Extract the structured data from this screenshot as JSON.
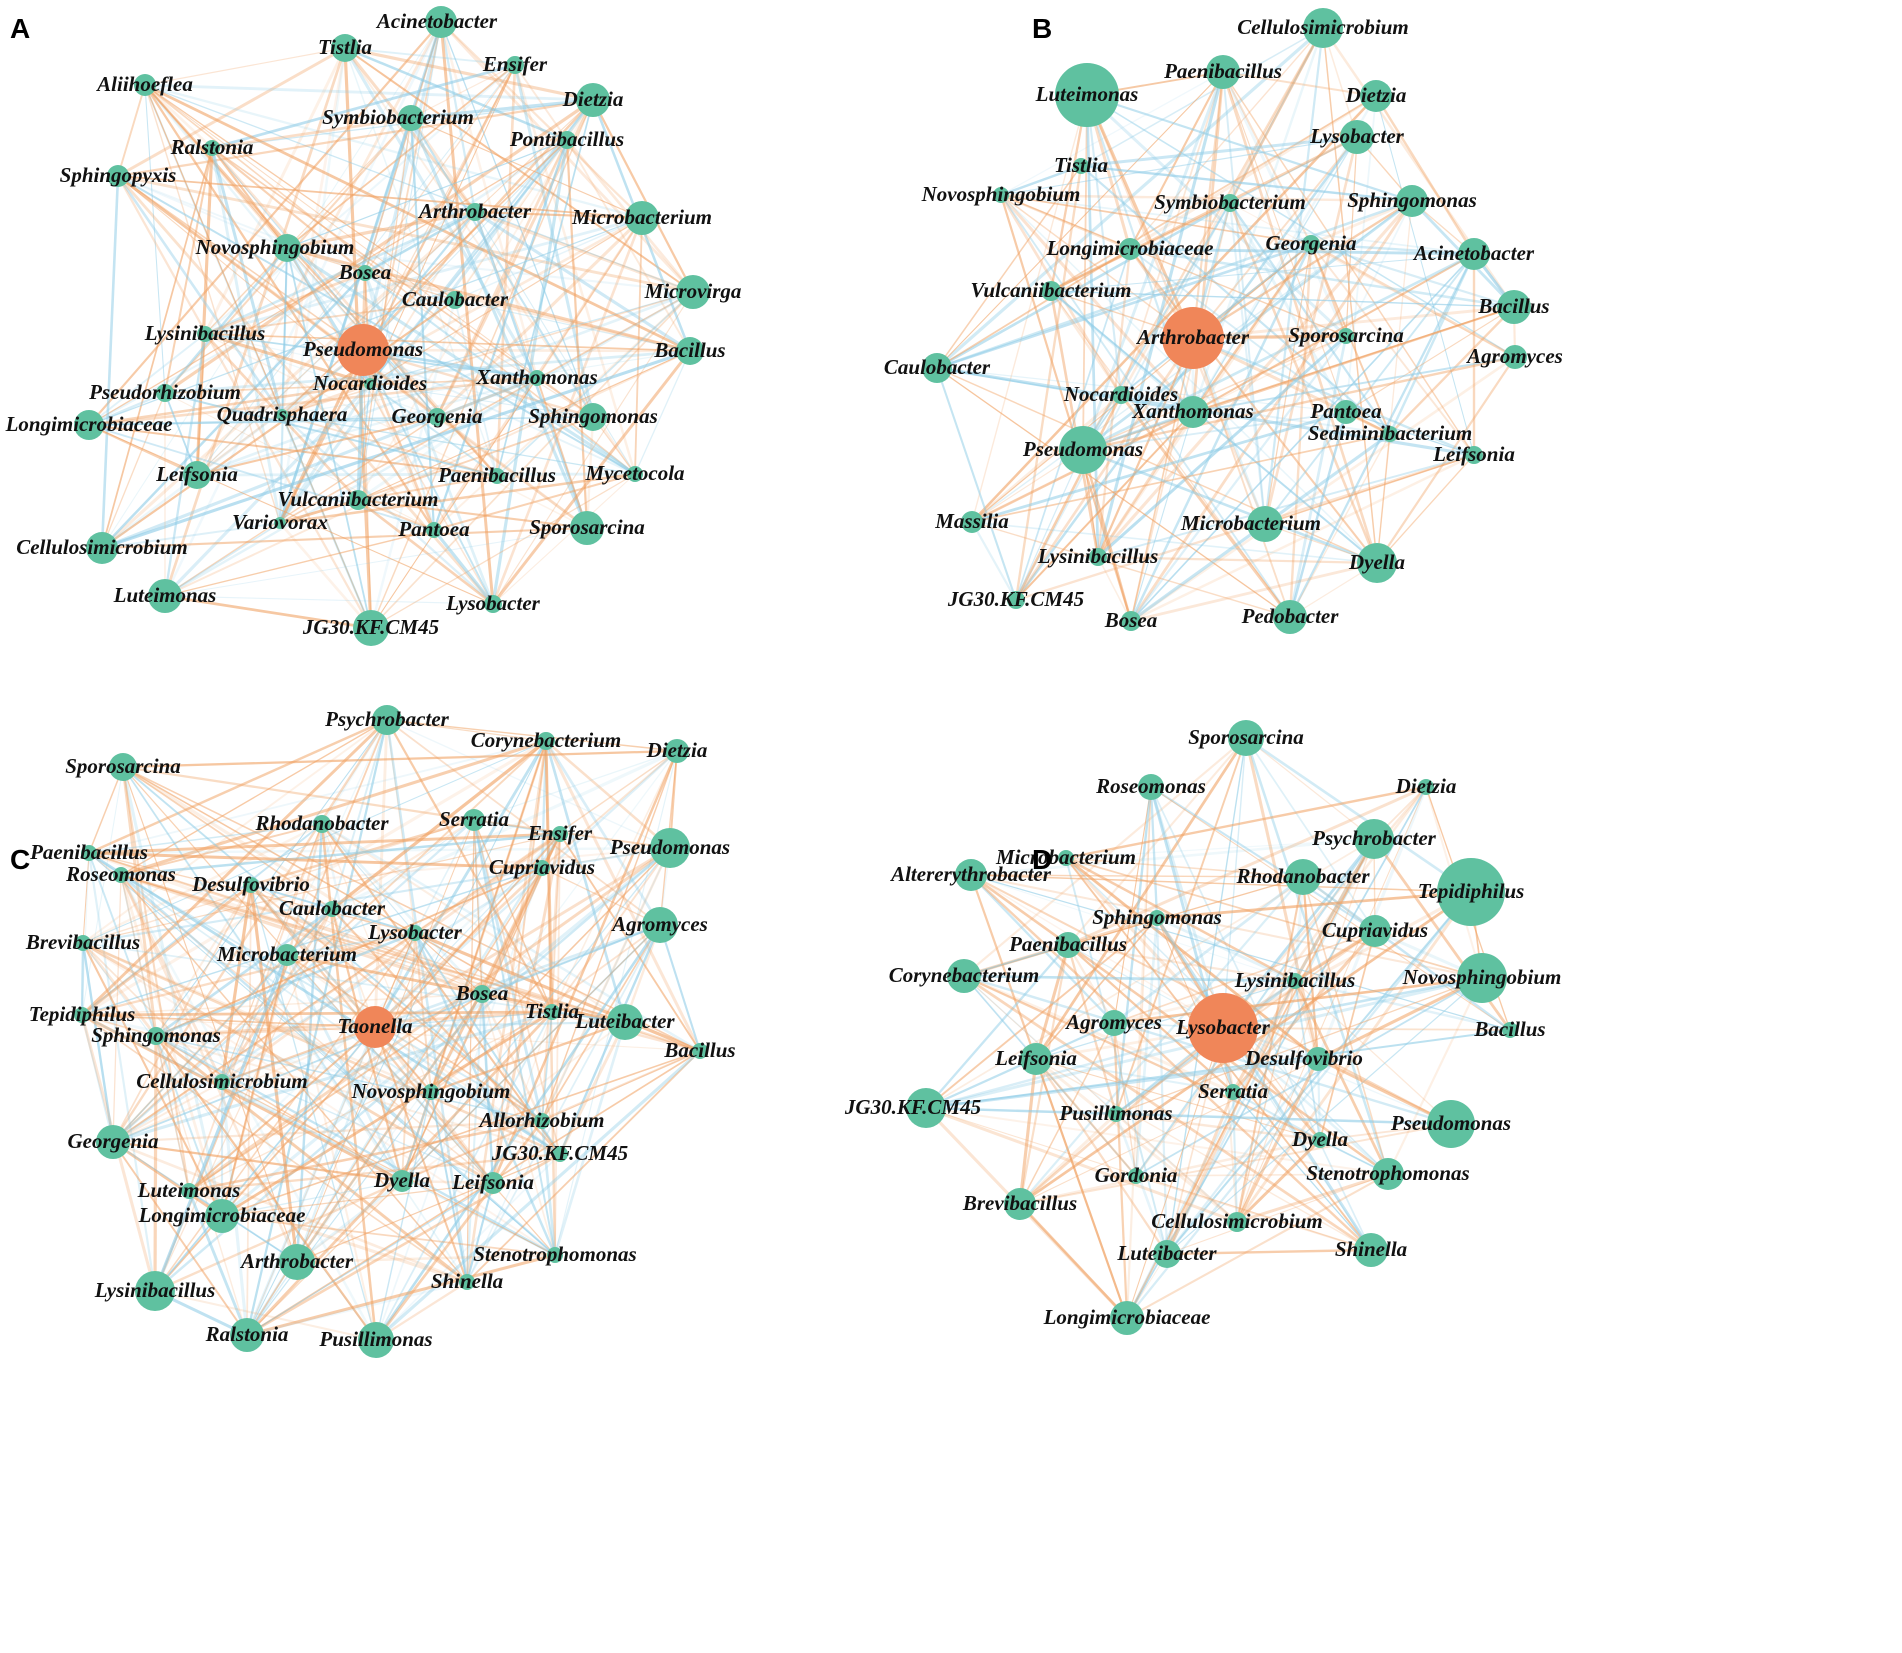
{
  "colors": {
    "node": "#5fc1a0",
    "hub": "#f08659",
    "edge_positive": "#f0a060",
    "edge_negative": "#8ccbe6",
    "background": "#ffffff"
  },
  "panels": [
    {
      "letter": "A",
      "hub": "Pseudomonas",
      "nodes": [
        "Acinetobacter",
        "Tistlia",
        "Ensifer",
        "Aliihoeflea",
        "Dietzia",
        "Symbiobacterium",
        "Pontibacillus",
        "Ralstonia",
        "Sphingopyxis",
        "Arthrobacter",
        "Microbacterium",
        "Novosphingobium",
        "Bosea",
        "Microvirga",
        "Caulobacter",
        "Lysinibacillus",
        "Pseudomonas",
        "Bacillus",
        "Nocardioides",
        "Xanthomonas",
        "Pseudorhizobium",
        "Quadrisphaera",
        "Georgenia",
        "Sphingomonas",
        "Longimicrobiaceae",
        "Leifsonia",
        "Paenibacillus",
        "Mycetocola",
        "Vulcaniibacterium",
        "Variovorax",
        "Pantoea",
        "Sporosarcina",
        "Cellulosimicrobium",
        "Luteimonas",
        "Lysobacter",
        "JG30.KF.CM45"
      ]
    },
    {
      "letter": "B",
      "hub": "Arthrobacter",
      "nodes": [
        "Cellulosimicrobium",
        "Paenibacillus",
        "Luteimonas",
        "Dietzia",
        "Lysobacter",
        "Tistlia",
        "Novosphingobium",
        "Symbiobacterium",
        "Sphingomonas",
        "Georgenia",
        "Longimicrobiaceae",
        "Acinetobacter",
        "Vulcaniibacterium",
        "Bacillus",
        "Arthrobacter",
        "Sporosarcina",
        "Agromyces",
        "Caulobacter",
        "Nocardioides",
        "Xanthomonas",
        "Pantoea",
        "Sediminibacterium",
        "Pseudomonas",
        "Leifsonia",
        "Massilia",
        "Microbacterium",
        "Lysinibacillus",
        "Dyella",
        "JG30.KF.CM45",
        "Bosea",
        "Pedobacter"
      ]
    },
    {
      "letter": "C",
      "hub": "Taonella",
      "nodes": [
        "Psychrobacter",
        "Corynebacterium",
        "Dietzia",
        "Sporosarcina",
        "Rhodanobacter",
        "Serratia",
        "Ensifer",
        "Pseudomonas",
        "Paenibacillus",
        "Roseomonas",
        "Desulfovibrio",
        "Cupriavidus",
        "Caulobacter",
        "Brevibacillus",
        "Lysobacter",
        "Agromyces",
        "Microbacterium",
        "Tepidiphilus",
        "Bosea",
        "Tistlia",
        "Luteibacter",
        "Sphingomonas",
        "Taonella",
        "Bacillus",
        "Cellulosimicrobium",
        "Novosphingobium",
        "Allorhizobium",
        "Georgenia",
        "JG30.KF.CM45",
        "Dyella",
        "Leifsonia",
        "Luteimonas",
        "Longimicrobiaceae",
        "Stenotrophomonas",
        "Arthrobacter",
        "Shinella",
        "Lysinibacillus",
        "Ralstonia",
        "Pusillimonas"
      ]
    },
    {
      "letter": "D",
      "hub": "Lysobacter",
      "nodes": [
        "Sporosarcina",
        "Roseomonas",
        "Dietzia",
        "Psychrobacter",
        "Microbacterium",
        "Altererythrobacter",
        "Rhodanobacter",
        "Tepidiphilus",
        "Sphingomonas",
        "Cupriavidus",
        "Paenibacillus",
        "Corynebacterium",
        "Lysinibacillus",
        "Novosphingobium",
        "Agromyces",
        "Lysobacter",
        "Bacillus",
        "Leifsonia",
        "Desulfovibrio",
        "Serratia",
        "JG30.KF.CM45",
        "Pusillimonas",
        "Pseudomonas",
        "Dyella",
        "Gordonia",
        "Stenotrophomonas",
        "Brevibacillus",
        "Cellulosimicrobium",
        "Luteibacter",
        "Shinella",
        "Longimicrobiaceae"
      ]
    }
  ]
}
